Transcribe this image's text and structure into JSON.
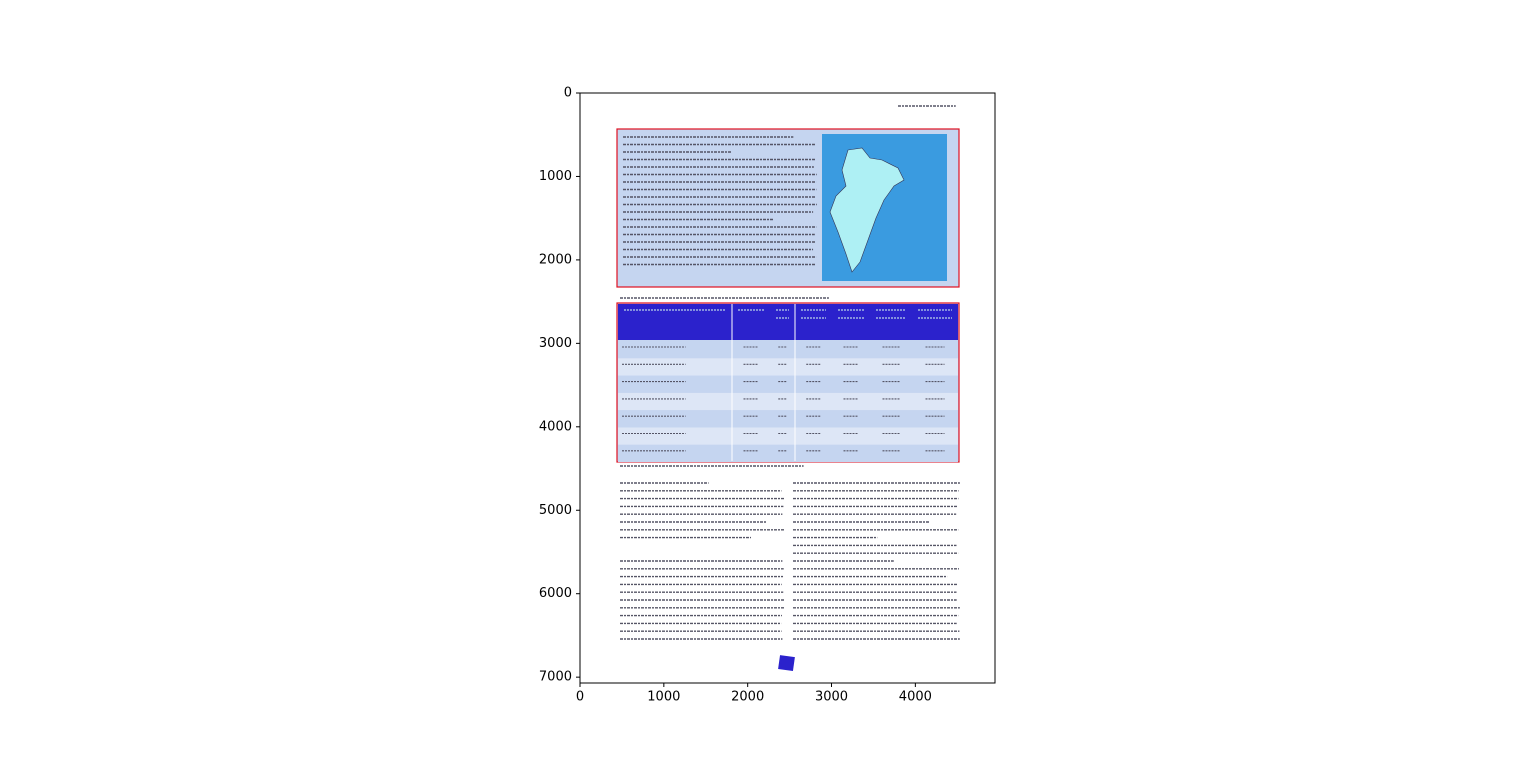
{
  "chart_data": {
    "type": "image",
    "xlim": [
      0,
      4950
    ],
    "ylim": [
      7070,
      0
    ],
    "xticks": [
      0,
      1000,
      2000,
      3000,
      4000
    ],
    "yticks": [
      0,
      1000,
      2000,
      3000,
      4000,
      5000,
      6000,
      7000
    ]
  }
}
